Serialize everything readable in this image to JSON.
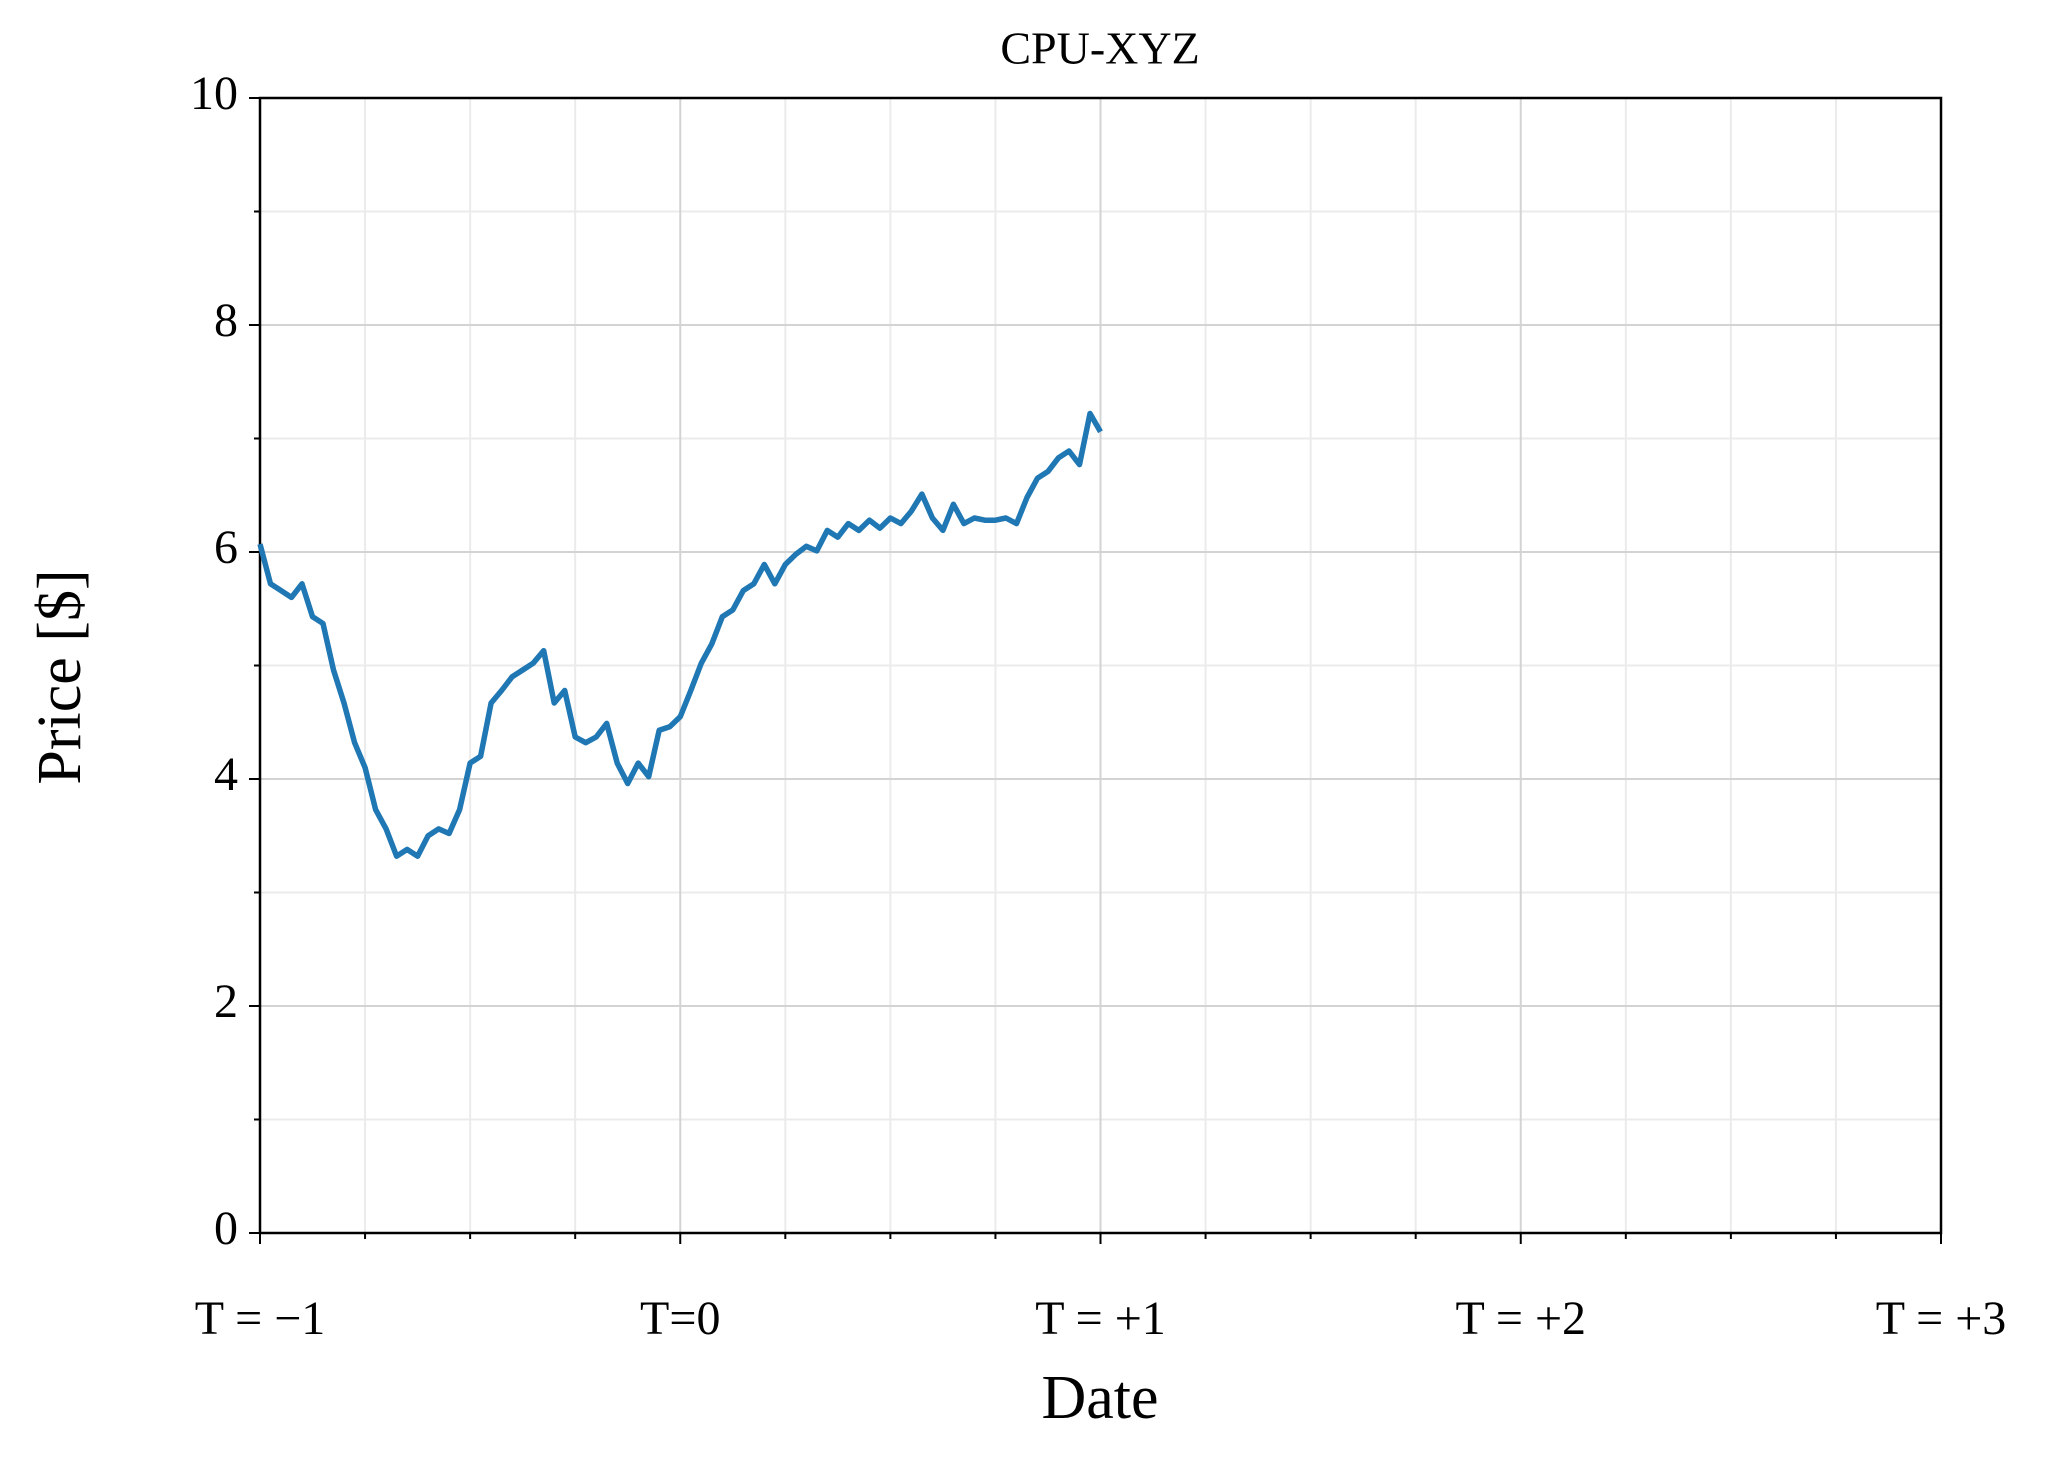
{
  "chart_data": {
    "type": "line",
    "title": "CPU-XYZ",
    "xlabel": "Date",
    "ylabel": "Price [$]",
    "x": [
      -1,
      -0.975,
      -0.95,
      -0.925,
      -0.9,
      -0.875,
      -0.85,
      -0.825,
      -0.8,
      -0.775,
      -0.75,
      -0.725,
      -0.7,
      -0.675,
      -0.65,
      -0.625,
      -0.6,
      -0.575,
      -0.55,
      -0.525,
      -0.5,
      -0.475,
      -0.45,
      -0.425,
      -0.4,
      -0.375,
      -0.35,
      -0.325,
      -0.3,
      -0.275,
      -0.25,
      -0.225,
      -0.2,
      -0.175,
      -0.15,
      -0.125,
      -0.1,
      -0.075,
      -0.05,
      -0.025,
      0,
      0.025,
      0.05,
      0.075,
      0.1,
      0.125,
      0.15,
      0.175,
      0.2,
      0.225,
      0.25,
      0.275,
      0.3,
      0.325,
      0.35,
      0.375,
      0.4,
      0.425,
      0.45,
      0.475,
      0.5,
      0.525,
      0.55,
      0.575,
      0.6,
      0.625,
      0.65,
      0.675,
      0.7,
      0.725,
      0.75,
      0.775,
      0.8,
      0.825,
      0.85,
      0.875,
      0.9,
      0.925,
      0.95,
      0.975,
      1
    ],
    "series": [
      {
        "color": "#1f77b4",
        "values": [
          6.07,
          5.72,
          5.66,
          5.6,
          5.72,
          5.43,
          5.37,
          4.96,
          4.67,
          4.32,
          4.1,
          3.73,
          3.56,
          3.32,
          3.38,
          3.32,
          3.5,
          3.56,
          3.52,
          3.73,
          4.14,
          4.2,
          4.67,
          4.78,
          4.9,
          4.96,
          5.02,
          5.13,
          4.67,
          4.78,
          4.37,
          4.32,
          4.37,
          4.49,
          4.14,
          3.96,
          4.14,
          4.02,
          4.43,
          4.46,
          4.55,
          4.78,
          5.02,
          5.19,
          5.43,
          5.49,
          5.66,
          5.72,
          5.89,
          5.72,
          5.89,
          5.98,
          6.05,
          6.01,
          6.19,
          6.13,
          6.25,
          6.19,
          6.28,
          6.21,
          6.3,
          6.25,
          6.36,
          6.51,
          6.3,
          6.19,
          6.42,
          6.25,
          6.3,
          6.28,
          6.28,
          6.3,
          6.25,
          6.48,
          6.65,
          6.71,
          6.83,
          6.89,
          6.77,
          7.22,
          7.06
        ]
      }
    ],
    "xlim": [
      -1,
      3
    ],
    "xticks": [
      {
        "value": -1,
        "label": "T = −1"
      },
      {
        "value": 0,
        "label": "T=0"
      },
      {
        "value": 1,
        "label": "T = +1"
      },
      {
        "value": 2,
        "label": "T = +2"
      },
      {
        "value": 3,
        "label": "T = +3"
      }
    ],
    "xminorticks": [
      -0.75,
      -0.5,
      -0.25,
      0.25,
      0.5,
      0.75,
      1.25,
      1.5,
      1.75,
      2.25,
      2.5,
      2.75
    ],
    "ylim": [
      0,
      10
    ],
    "yticks": [
      0,
      2,
      4,
      6,
      8,
      10
    ],
    "yminorticks": [
      1,
      3,
      5,
      7,
      9
    ],
    "grid": true
  }
}
